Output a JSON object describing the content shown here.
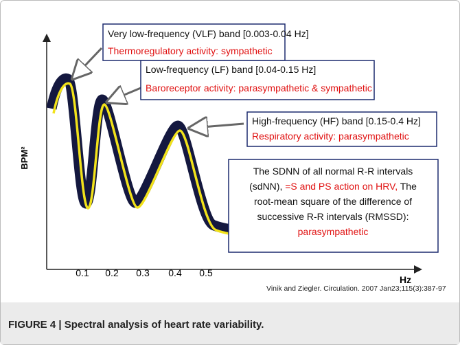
{
  "figure": {
    "y_label": "BPM²",
    "x_label": "Hz",
    "x_ticks": [
      "0.1",
      "0.2",
      "0.3",
      "0.4",
      "0.5"
    ],
    "boxes": [
      {
        "title": "Very low-frequency (VLF) band [0.003-0.04 Hz]",
        "detail": "Thermoregulatory activity: sympathetic"
      },
      {
        "title": "Low-frequency (LF) band  [0.04-0.15 Hz]",
        "detail": "Baroreceptor activity:  parasympathetic & sympathetic"
      },
      {
        "title": "High-frequency (HF) band  [0.15-0.4 Hz]",
        "detail": "Respiratory activity:  parasympathetic"
      }
    ],
    "note": {
      "line1": "The SDNN of all normal R-R intervals",
      "line2a": "(sdNN), ",
      "line2b": "=S and PS action on HRV,",
      "line2c": " The",
      "line3": "root-mean square of the difference of",
      "line4": "successive R-R intervals (RMSSD):",
      "line5": "parasympathetic"
    },
    "citation": "Vinik and Ziegler. Circulation. 2007 Jan23;115(3):387-97",
    "caption": "FIGURE 4 | Spectral analysis of heart rate variability."
  }
}
